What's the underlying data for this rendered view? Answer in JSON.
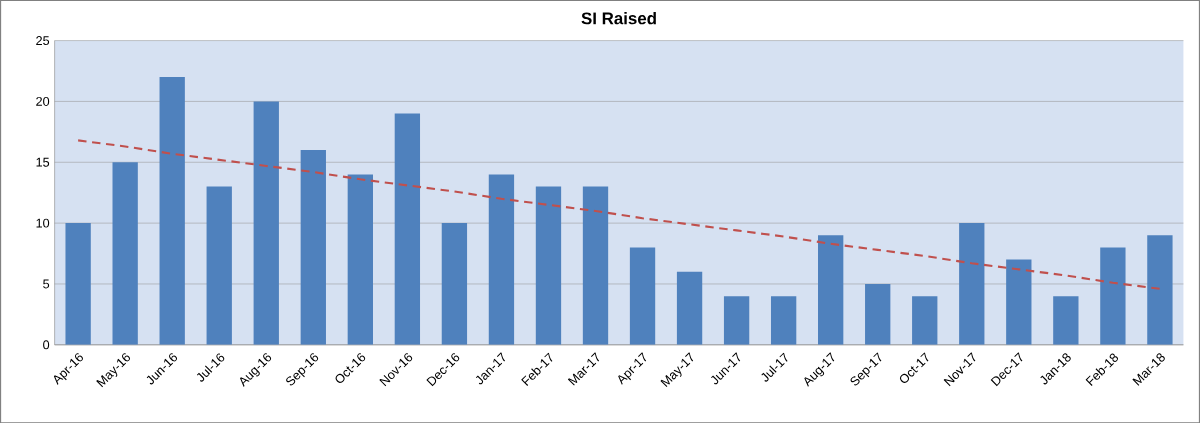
{
  "chart_data": {
    "type": "bar",
    "title": "SI Raised",
    "categories": [
      "Apr-16",
      "May-16",
      "Jun-16",
      "Jul-16",
      "Aug-16",
      "Sep-16",
      "Oct-16",
      "Nov-16",
      "Dec-16",
      "Jan-17",
      "Feb-17",
      "Mar-17",
      "Apr-17",
      "May-17",
      "Jun-17",
      "Jul-17",
      "Aug-17",
      "Sep-17",
      "Oct-17",
      "Nov-17",
      "Dec-17",
      "Jan-18",
      "Feb-18",
      "Mar-18"
    ],
    "series": [
      {
        "color": "#4f81bd",
        "values": [
          10,
          15,
          22,
          13,
          20,
          16,
          14,
          19,
          10,
          14,
          13,
          13,
          8,
          6,
          4,
          4,
          9,
          5,
          4,
          10,
          7,
          4,
          8,
          9
        ]
      },
      {
        "type": "line",
        "color": "#c0504d",
        "line_style": "dashed",
        "values": [
          16.8,
          16.3,
          15.7,
          15.2,
          14.7,
          14.2,
          13.6,
          13.1,
          12.6,
          12.0,
          11.5,
          11.0,
          10.4,
          9.9,
          9.4,
          8.9,
          8.3,
          7.8,
          7.3,
          6.7,
          6.2,
          5.7,
          5.1,
          4.6
        ]
      }
    ],
    "ylim": [
      0,
      25
    ],
    "yticks": [
      0,
      5,
      10,
      15,
      20,
      25
    ],
    "grid": "y"
  }
}
